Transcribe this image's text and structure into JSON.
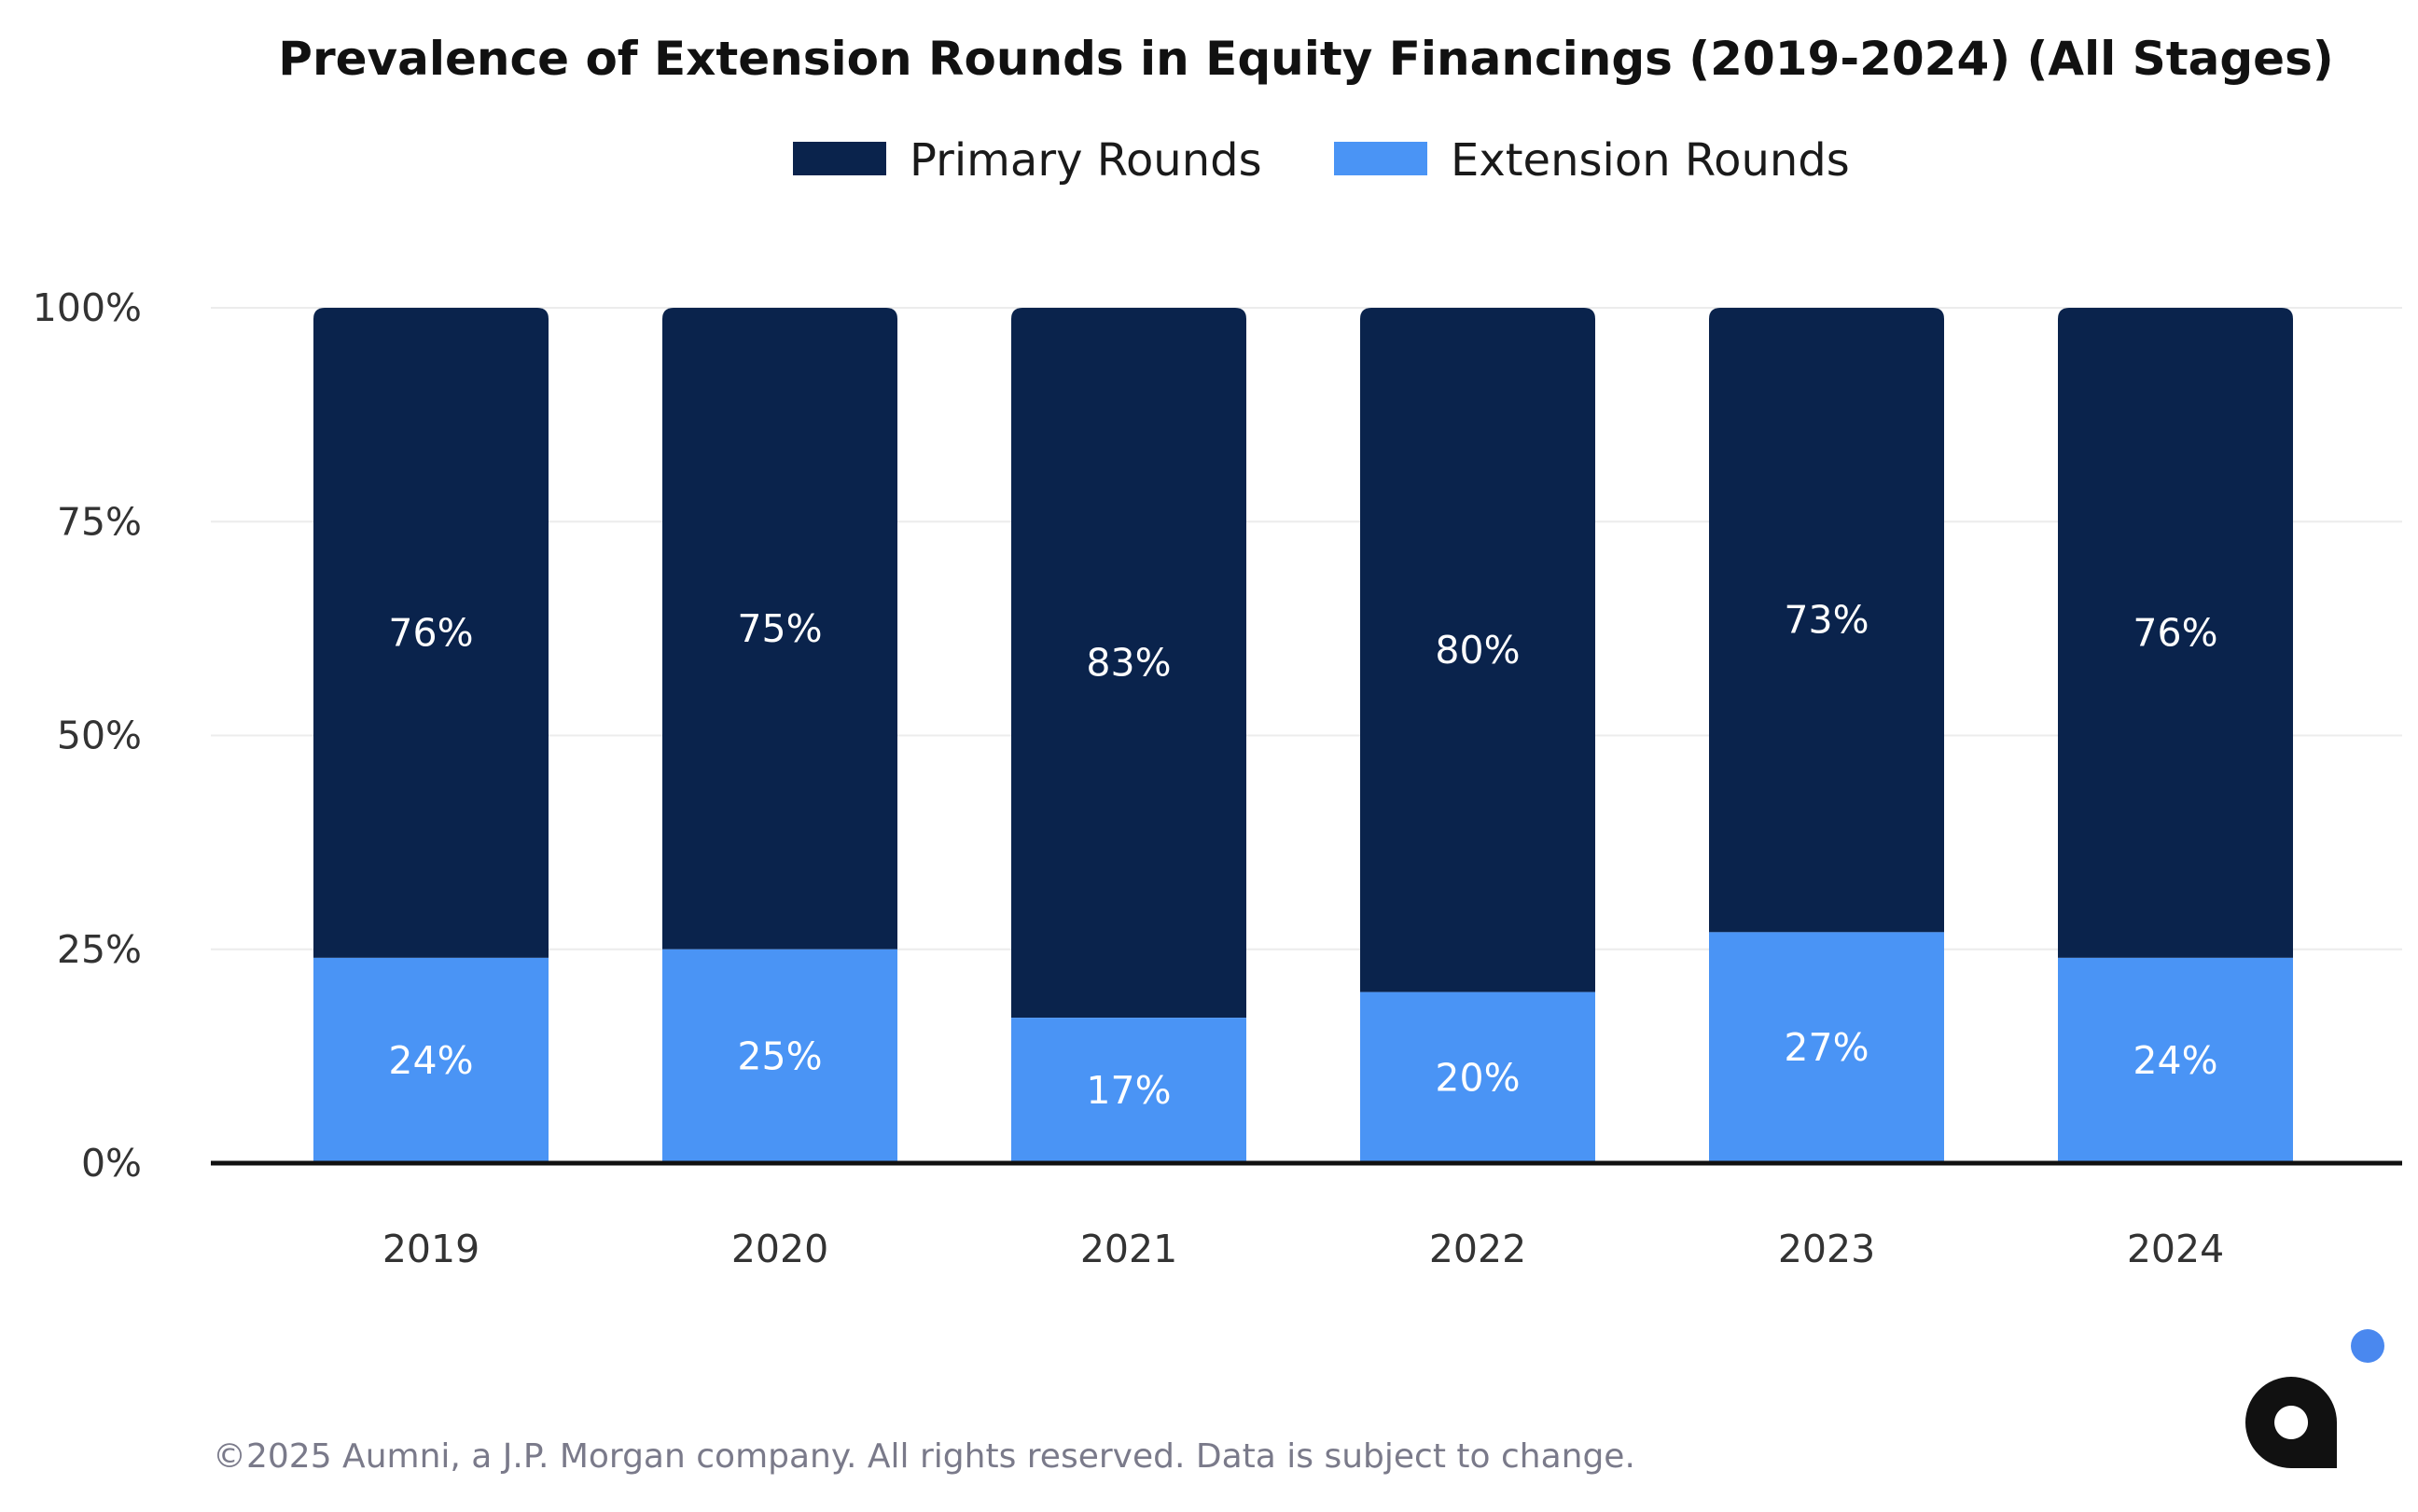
{
  "colors": {
    "primary": "#0a234c",
    "extension": "#4a94f5",
    "grid": "#ececec",
    "axis": "#111111",
    "logo_dark": "#111111",
    "logo_dot": "#4a88ef"
  },
  "footer": {
    "copyright": "©2025 Aumni, a J.P. Morgan company. All rights reserved. Data is subject to change."
  },
  "logo": {
    "icon": "aumni-logo-icon"
  },
  "chart_data": {
    "type": "bar",
    "stacked": true,
    "title": "Prevalence of Extension Rounds in Equity Financings (2019-2024) (All Stages)",
    "xlabel": "",
    "ylabel": "",
    "ylim": [
      0,
      100
    ],
    "yticks": [
      "0%",
      "25%",
      "50%",
      "75%",
      "100%"
    ],
    "legend_position": "top-center",
    "grid": true,
    "categories": [
      "2019",
      "2020",
      "2021",
      "2022",
      "2023",
      "2024"
    ],
    "series": [
      {
        "name": "Extension Rounds",
        "values": [
          24,
          25,
          17,
          20,
          27,
          24
        ],
        "labels": [
          "24%",
          "25%",
          "17%",
          "20%",
          "27%",
          "24%"
        ]
      },
      {
        "name": "Primary Rounds",
        "values": [
          76,
          75,
          83,
          80,
          73,
          76
        ],
        "labels": [
          "76%",
          "75%",
          "83%",
          "80%",
          "73%",
          "76%"
        ]
      }
    ]
  }
}
